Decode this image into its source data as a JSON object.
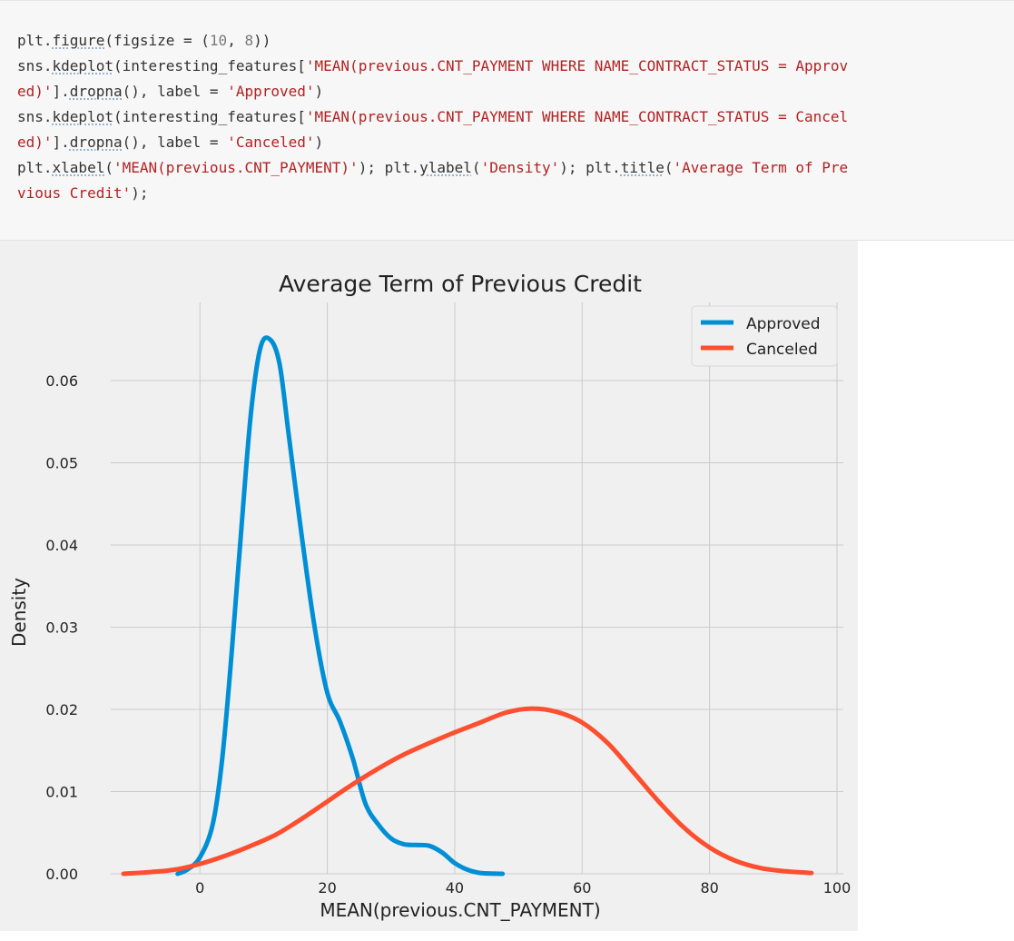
{
  "code": {
    "lines": [
      [
        {
          "t": "plt.",
          "k": "plain"
        },
        {
          "t": "figure",
          "k": "fn"
        },
        {
          "t": "(figsize = (",
          "k": "plain"
        },
        {
          "t": "10",
          "k": "num"
        },
        {
          "t": ", ",
          "k": "plain"
        },
        {
          "t": "8",
          "k": "num"
        },
        {
          "t": "))",
          "k": "plain"
        }
      ],
      [
        {
          "t": "sns.",
          "k": "plain"
        },
        {
          "t": "kdeplot",
          "k": "fn"
        },
        {
          "t": "(interesting_features[",
          "k": "plain"
        },
        {
          "t": "'MEAN(previous.CNT_PAYMENT WHERE NAME_CONTRACT_STATUS = Approv",
          "k": "str"
        }
      ],
      [
        {
          "t": "ed)'",
          "k": "str"
        },
        {
          "t": "].",
          "k": "plain"
        },
        {
          "t": "dropna",
          "k": "fn"
        },
        {
          "t": "(), label = ",
          "k": "plain"
        },
        {
          "t": "'Approved'",
          "k": "str"
        },
        {
          "t": ")",
          "k": "plain"
        }
      ],
      [
        {
          "t": "sns.",
          "k": "plain"
        },
        {
          "t": "kdeplot",
          "k": "fn"
        },
        {
          "t": "(interesting_features[",
          "k": "plain"
        },
        {
          "t": "'MEAN(previous.CNT_PAYMENT WHERE NAME_CONTRACT_STATUS = Cancel",
          "k": "str"
        }
      ],
      [
        {
          "t": "ed)'",
          "k": "str"
        },
        {
          "t": "].",
          "k": "plain"
        },
        {
          "t": "dropna",
          "k": "fn"
        },
        {
          "t": "(), label = ",
          "k": "plain"
        },
        {
          "t": "'Canceled'",
          "k": "str"
        },
        {
          "t": ")",
          "k": "plain"
        }
      ],
      [
        {
          "t": "plt.",
          "k": "plain"
        },
        {
          "t": "xlabel",
          "k": "fn"
        },
        {
          "t": "(",
          "k": "plain"
        },
        {
          "t": "'MEAN(previous.CNT_PAYMENT)'",
          "k": "str"
        },
        {
          "t": "); plt.",
          "k": "plain"
        },
        {
          "t": "ylabel",
          "k": "fn"
        },
        {
          "t": "(",
          "k": "plain"
        },
        {
          "t": "'Density'",
          "k": "str"
        },
        {
          "t": "); plt.",
          "k": "plain"
        },
        {
          "t": "title",
          "k": "fn"
        },
        {
          "t": "(",
          "k": "plain"
        },
        {
          "t": "'Average Term of Pre",
          "k": "str"
        }
      ],
      [
        {
          "t": "vious Credit'",
          "k": "str"
        },
        {
          "t": ");",
          "k": "plain"
        }
      ]
    ]
  },
  "chart_data": {
    "type": "line",
    "title": "Average Term of Previous Credit",
    "xlabel": "MEAN(previous.CNT_PAYMENT)",
    "ylabel": "Density",
    "xlim": [
      -14,
      101
    ],
    "ylim": [
      0,
      0.0695
    ],
    "xticks": [
      0,
      20,
      40,
      60,
      80,
      100
    ],
    "xtick_labels": [
      "0",
      "20",
      "40",
      "60",
      "80",
      "100"
    ],
    "yticks": [
      0,
      0.01,
      0.02,
      0.03,
      0.04,
      0.05,
      0.06
    ],
    "ytick_labels": [
      "0.00",
      "0.01",
      "0.02",
      "0.03",
      "0.04",
      "0.05",
      "0.06"
    ],
    "grid": true,
    "legend_position": "top-right",
    "colors": {
      "background": "#f0f0f0",
      "grid": "#cbcbcb"
    },
    "series": [
      {
        "name": "Approved",
        "color": "#008fd5",
        "x": [
          -3.5,
          -2,
          0,
          2,
          3.5,
          5,
          6.5,
          8,
          9.5,
          11,
          12.5,
          14,
          16,
          18,
          20,
          22,
          24,
          26,
          28,
          30,
          32,
          34,
          36,
          38,
          40,
          42,
          44,
          47.5
        ],
        "y": [
          0,
          0.0005,
          0.002,
          0.006,
          0.014,
          0.027,
          0.042,
          0.056,
          0.064,
          0.065,
          0.062,
          0.053,
          0.041,
          0.03,
          0.022,
          0.0185,
          0.014,
          0.0085,
          0.006,
          0.0043,
          0.0036,
          0.0035,
          0.0034,
          0.0026,
          0.0013,
          0.0005,
          0.0001,
          0
        ]
      },
      {
        "name": "Canceled",
        "color": "#fc4f30",
        "x": [
          -12,
          -8,
          -4,
          0,
          4,
          8,
          12,
          16,
          20,
          24,
          28,
          32,
          36,
          40,
          44,
          48,
          52,
          56,
          60,
          64,
          68,
          72,
          76,
          80,
          84,
          88,
          92,
          96
        ],
        "y": [
          0,
          0.0002,
          0.0005,
          0.0012,
          0.0022,
          0.0034,
          0.0048,
          0.0067,
          0.0088,
          0.0109,
          0.0128,
          0.0145,
          0.0159,
          0.0172,
          0.0184,
          0.0196,
          0.0201,
          0.0197,
          0.0184,
          0.0159,
          0.0124,
          0.0088,
          0.0056,
          0.0032,
          0.0016,
          0.0007,
          0.0003,
          0.0001
        ]
      }
    ]
  }
}
